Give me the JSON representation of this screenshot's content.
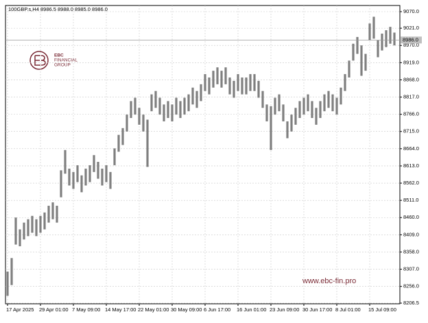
{
  "chart_data": {
    "type": "hlbar",
    "title": "100GBP.s,H4  8986.5 8988.0 8985.0 8986.0",
    "logo": [
      "EBC",
      "FINANCIAL",
      "GROUP"
    ],
    "watermark": "www.ebc-fin.pro",
    "color": "#7f7f7f",
    "grid": true,
    "categories": [
      "17 Apr 2025",
      null,
      null,
      null,
      null,
      null,
      null,
      null,
      "29 Apr 01:00",
      null,
      null,
      null,
      null,
      null,
      null,
      null,
      "7 May 09:00",
      null,
      null,
      null,
      null,
      null,
      null,
      null,
      "14 May 17:00",
      null,
      null,
      null,
      null,
      null,
      null,
      null,
      "22 May 01:00",
      null,
      null,
      null,
      null,
      null,
      null,
      null,
      "30 May 09:00",
      null,
      null,
      null,
      null,
      null,
      null,
      null,
      "6 Jun 17:00",
      null,
      null,
      null,
      null,
      null,
      null,
      null,
      "16 Jun 01:00",
      null,
      null,
      null,
      null,
      null,
      null,
      null,
      "23 Jun 09:00",
      null,
      null,
      null,
      null,
      null,
      null,
      null,
      "30 Jun 17:00",
      null,
      null,
      null,
      null,
      null,
      null,
      null,
      "8 Jul 01:00",
      null,
      null,
      null,
      null,
      null,
      null,
      null,
      "15 Jul 09:00",
      null,
      null,
      null,
      null,
      null,
      null
    ],
    "series": [
      {
        "name": "High",
        "values": [
          8300,
          8340,
          8460,
          8425,
          8445,
          8455,
          8465,
          8455,
          8465,
          8475,
          8495,
          8505,
          8495,
          8600,
          8660,
          8605,
          8595,
          8615,
          8585,
          8605,
          8615,
          8645,
          8625,
          8605,
          8615,
          8595,
          8665,
          8705,
          8725,
          8765,
          8805,
          8815,
          8785,
          8765,
          8750,
          8825,
          8835,
          8815,
          8795,
          8805,
          8795,
          8815,
          8805,
          8815,
          8825,
          8845,
          8835,
          8855,
          8885,
          8875,
          8895,
          8905,
          8895,
          8905,
          8875,
          8865,
          8885,
          8875,
          8875,
          8885,
          8885,
          8865,
          8835,
          8795,
          8790,
          8815,
          8825,
          8795,
          8745,
          8765,
          8785,
          8805,
          8815,
          8825,
          8805,
          8785,
          8805,
          8825,
          8835,
          8825,
          8815,
          8845,
          8885,
          8925,
          8975,
          8995,
          8970,
          8945,
          9035,
          9055,
          8985,
          9005,
          9015,
          9025,
          9008
        ]
      },
      {
        "name": "Low",
        "values": [
          8228,
          8260,
          8380,
          8375,
          8395,
          8405,
          8415,
          8405,
          8415,
          8425,
          8445,
          8455,
          8445,
          8520,
          8590,
          8555,
          8545,
          8565,
          8535,
          8555,
          8565,
          8595,
          8575,
          8555,
          8565,
          8545,
          8615,
          8655,
          8675,
          8715,
          8755,
          8765,
          8735,
          8715,
          8610,
          8775,
          8785,
          8765,
          8745,
          8755,
          8745,
          8765,
          8755,
          8765,
          8775,
          8795,
          8785,
          8805,
          8835,
          8825,
          8845,
          8855,
          8845,
          8855,
          8825,
          8815,
          8835,
          8825,
          8825,
          8835,
          8835,
          8815,
          8785,
          8745,
          8660,
          8765,
          8775,
          8745,
          8695,
          8715,
          8735,
          8755,
          8765,
          8775,
          8755,
          8735,
          8755,
          8775,
          8785,
          8775,
          8765,
          8795,
          8835,
          8875,
          8925,
          8945,
          8880,
          8895,
          8985,
          8990,
          8935,
          8955,
          8965,
          8975,
          8970
        ]
      }
    ],
    "last_price": {
      "value": 8986.0,
      "label": "8986.0"
    },
    "ylim": [
      8204.5,
      9088.3
    ],
    "yticks": [
      {
        "value": 9070,
        "label": "9070.0"
      },
      {
        "value": 9021,
        "label": "9021.0"
      },
      {
        "value": 8970,
        "label": "8970.0"
      },
      {
        "value": 8919,
        "label": "8919.0"
      },
      {
        "value": 8868,
        "label": "8868.0"
      },
      {
        "value": 8817,
        "label": "8817.0"
      },
      {
        "value": 8766,
        "label": "8766.0"
      },
      {
        "value": 8715,
        "label": "8715.0"
      },
      {
        "value": 8664,
        "label": "8664.0"
      },
      {
        "value": 8613,
        "label": "8613.0"
      },
      {
        "value": 8562,
        "label": "8562.0"
      },
      {
        "value": 8511,
        "label": "8511.0"
      },
      {
        "value": 8460,
        "label": "8460.0"
      },
      {
        "value": 8409,
        "label": "8409.0"
      },
      {
        "value": 8358,
        "label": "8358.0"
      },
      {
        "value": 8307,
        "label": "8307.0"
      },
      {
        "value": 8256,
        "label": "8256.0"
      },
      {
        "value": 8206.5,
        "label": "8206.5"
      }
    ]
  }
}
